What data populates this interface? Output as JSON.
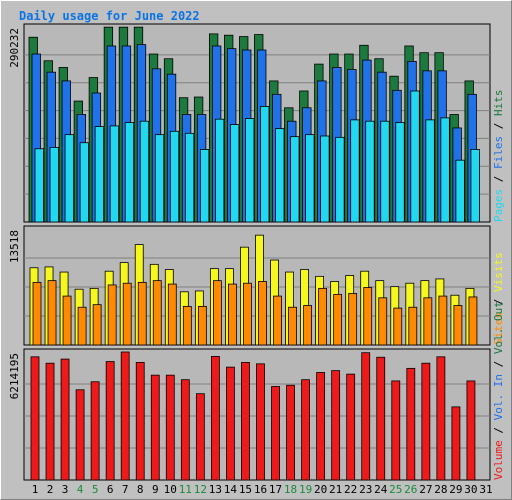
{
  "title": "Daily usage for June 2022",
  "colors": {
    "background": "#c0c0c0",
    "panel": "#b8b8b8",
    "title": "#0a74e6",
    "hits": "#1c7a3e",
    "files": "#1f72e8",
    "pages": "#22d8f0",
    "visits": "#f7f720",
    "sites": "#ff8a00",
    "kbytes": "#ee1a1a",
    "weekend": "#1c8a3a",
    "weekday": "#000000",
    "legend_out": "#1c7a3e",
    "slash": "#000000"
  },
  "chart_data": [
    {
      "type": "bar",
      "panel": "hits-files-pages",
      "title": "Daily usage for June 2022",
      "ylabel_max": "290232",
      "ylim": [
        0,
        290232
      ],
      "grid": true,
      "categories": [
        "1",
        "2",
        "3",
        "4",
        "5",
        "6",
        "7",
        "8",
        "9",
        "10",
        "11",
        "12",
        "13",
        "14",
        "15",
        "16",
        "17",
        "18",
        "19",
        "20",
        "21",
        "22",
        "23",
        "24",
        "25",
        "26",
        "27",
        "28",
        "29",
        "30",
        "31"
      ],
      "weekend_days": [
        4,
        5,
        11,
        12,
        18,
        19,
        25,
        26
      ],
      "legend": [
        "Hits",
        "Files",
        "Pages"
      ],
      "series": [
        {
          "name": "Hits",
          "values": [
            275000,
            240000,
            230000,
            180000,
            215000,
            290000,
            290000,
            290000,
            250000,
            243000,
            185000,
            186000,
            280000,
            278000,
            276000,
            279000,
            210000,
            170000,
            195000,
            235000,
            250000,
            250000,
            263000,
            243000,
            217000,
            262000,
            252000,
            252000,
            160000,
            210000,
            0
          ]
        },
        {
          "name": "Files",
          "values": [
            250000,
            223000,
            210000,
            160000,
            192000,
            262000,
            262000,
            264000,
            228000,
            220000,
            160000,
            160000,
            262000,
            258000,
            256000,
            256000,
            190000,
            150000,
            170000,
            210000,
            230000,
            227000,
            241000,
            223000,
            196000,
            239000,
            225000,
            225000,
            140000,
            190000,
            0
          ]
        },
        {
          "name": "Pages",
          "values": [
            109000,
            111000,
            130000,
            118000,
            142000,
            143000,
            148000,
            150000,
            130000,
            135000,
            132000,
            108000,
            153000,
            145000,
            154000,
            172000,
            139000,
            127000,
            130000,
            128000,
            126000,
            152000,
            150000,
            150000,
            148000,
            195000,
            152000,
            155000,
            92000,
            108000,
            0
          ]
        }
      ]
    },
    {
      "type": "bar",
      "panel": "visits-sites",
      "ylabel_max": "13518",
      "ylim": [
        0,
        13518
      ],
      "grid": true,
      "categories": [
        "1",
        "2",
        "3",
        "4",
        "5",
        "6",
        "7",
        "8",
        "9",
        "10",
        "11",
        "12",
        "13",
        "14",
        "15",
        "16",
        "17",
        "18",
        "19",
        "20",
        "21",
        "22",
        "23",
        "24",
        "25",
        "26",
        "27",
        "28",
        "29",
        "30",
        "31"
      ],
      "legend": [
        "Visits",
        "Sites",
        "Vol. Out"
      ],
      "series": [
        {
          "name": "Visits",
          "values": [
            9000,
            9100,
            8500,
            6500,
            6600,
            8600,
            9600,
            11700,
            9400,
            8800,
            6200,
            6300,
            8900,
            8900,
            11400,
            12800,
            9900,
            8500,
            8800,
            8000,
            7400,
            8100,
            8600,
            7500,
            6800,
            7200,
            7500,
            7700,
            5800,
            6600,
            0
          ]
        },
        {
          "name": "Sites",
          "values": [
            7300,
            7500,
            5700,
            4400,
            4700,
            7000,
            7200,
            7300,
            7500,
            7100,
            4500,
            4500,
            7500,
            7100,
            7200,
            7400,
            5700,
            4400,
            4600,
            6600,
            5900,
            6000,
            6700,
            5500,
            4300,
            4400,
            5500,
            5700,
            4600,
            5600,
            0
          ]
        }
      ]
    },
    {
      "type": "bar",
      "panel": "kbytes",
      "ylabel_max": "6214195",
      "ylim": [
        0,
        6214195
      ],
      "grid": true,
      "categories": [
        "1",
        "2",
        "3",
        "4",
        "5",
        "6",
        "7",
        "8",
        "9",
        "10",
        "11",
        "12",
        "13",
        "14",
        "15",
        "16",
        "17",
        "18",
        "19",
        "20",
        "21",
        "22",
        "23",
        "24",
        "25",
        "26",
        "27",
        "28",
        "29",
        "30",
        "31"
      ],
      "legend": [
        "Volume",
        "Vol. In"
      ],
      "series": [
        {
          "name": "Volume",
          "values": [
            5980000,
            5670000,
            5870000,
            4380000,
            4770000,
            5750000,
            6214195,
            5710000,
            5090000,
            5090000,
            4870000,
            4190000,
            6000000,
            5480000,
            5710000,
            5640000,
            4540000,
            4600000,
            4870000,
            5220000,
            5310000,
            5140000,
            6180000,
            5960000,
            4810000,
            5420000,
            5670000,
            5980000,
            3550000,
            4810000,
            0
          ]
        }
      ]
    }
  ]
}
